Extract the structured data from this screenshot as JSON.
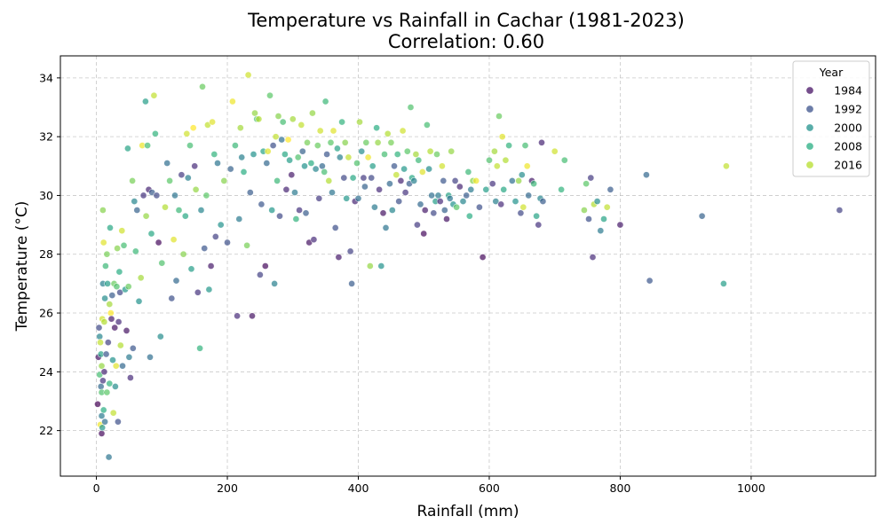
{
  "chart_data": {
    "type": "scatter",
    "title": "Temperature vs Rainfall in Cachar (1981-2023)",
    "subtitle": "Correlation: 0.60",
    "xlabel": "Rainfall (mm)",
    "ylabel": "Temperature (°C)",
    "xlim": [
      -55,
      1190
    ],
    "ylim": [
      20.45,
      34.75
    ],
    "xticks": [
      0,
      200,
      400,
      600,
      800,
      1000
    ],
    "yticks": [
      22,
      24,
      26,
      28,
      30,
      32,
      34
    ],
    "grid": true,
    "legend": {
      "title": "Year",
      "placement": "top-right",
      "entries": [
        {
          "label": "1984",
          "color": "#471365"
        },
        {
          "label": "1992",
          "color": "#3b528b"
        },
        {
          "label": "2000",
          "color": "#21918c"
        },
        {
          "label": "2008",
          "color": "#27ad81"
        },
        {
          "label": "2016",
          "color": "#b5de2b"
        }
      ]
    },
    "color_scale": {
      "year_range": [
        1981,
        2023
      ],
      "stops": [
        "#440154",
        "#472d7b",
        "#3b528b",
        "#2c728e",
        "#21918c",
        "#28ae80",
        "#5ec962",
        "#addc30",
        "#fde725"
      ]
    },
    "points": [
      [
        2,
        22.9,
        1981
      ],
      [
        3,
        24.5,
        1983
      ],
      [
        4,
        25.5,
        1990
      ],
      [
        5,
        23.9,
        2010
      ],
      [
        5,
        25.2,
        2000
      ],
      [
        6,
        25.0,
        2019
      ],
      [
        6,
        22.2,
        2022
      ],
      [
        7,
        23.5,
        1995
      ],
      [
        7,
        24.6,
        2005
      ],
      [
        8,
        21.9,
        1982
      ],
      [
        8,
        22.5,
        1998
      ],
      [
        8,
        23.3,
        2011
      ],
      [
        8,
        24.2,
        2016
      ],
      [
        9,
        22.1,
        2003
      ],
      [
        9,
        25.8,
        2020
      ],
      [
        10,
        23.7,
        1987
      ],
      [
        10,
        27.0,
        1999
      ],
      [
        10,
        29.5,
        2015
      ],
      [
        11,
        22.7,
        2007
      ],
      [
        11,
        28.4,
        2021
      ],
      [
        12,
        24.0,
        1985
      ],
      [
        12,
        25.7,
        2018
      ],
      [
        13,
        22.3,
        1996
      ],
      [
        13,
        26.5,
        2001
      ],
      [
        14,
        27.6,
        2009
      ],
      [
        15,
        24.6,
        1992
      ],
      [
        16,
        28.0,
        2014
      ],
      [
        16,
        23.3,
        2012
      ],
      [
        17,
        27.0,
        2004
      ],
      [
        18,
        25.0,
        1989
      ],
      [
        19,
        21.1,
        1997
      ],
      [
        20,
        26.3,
        2017
      ],
      [
        20,
        23.6,
        2008
      ],
      [
        21,
        28.9,
        2006
      ],
      [
        22,
        26.0,
        2023
      ],
      [
        23,
        25.8,
        1984
      ],
      [
        24,
        26.6,
        1993
      ],
      [
        25,
        24.4,
        2002
      ],
      [
        26,
        22.6,
        2019
      ],
      [
        27,
        27.0,
        2013
      ],
      [
        28,
        25.5,
        1983
      ],
      [
        29,
        23.5,
        2001
      ],
      [
        30,
        24.2,
        2021
      ],
      [
        31,
        26.9,
        2011
      ],
      [
        32,
        28.2,
        2015
      ],
      [
        33,
        22.3,
        1991
      ],
      [
        34,
        25.7,
        1986
      ],
      [
        35,
        27.4,
        2007
      ],
      [
        36,
        26.7,
        1990
      ],
      [
        37,
        24.9,
        2018
      ],
      [
        39,
        28.8,
        2020
      ],
      [
        40,
        24.2,
        1995
      ],
      [
        42,
        28.3,
        2010
      ],
      [
        44,
        26.8,
        2003
      ],
      [
        46,
        25.4,
        1983
      ],
      [
        48,
        31.6,
        2005
      ],
      [
        49,
        26.9,
        2013
      ],
      [
        50,
        24.5,
        1998
      ],
      [
        52,
        23.8,
        1986
      ],
      [
        55,
        30.5,
        2014
      ],
      [
        56,
        24.8,
        1992
      ],
      [
        58,
        29.8,
        2000
      ],
      [
        60,
        28.1,
        2009
      ],
      [
        62,
        29.5,
        1994
      ],
      [
        65,
        26.4,
        2002
      ],
      [
        68,
        27.2,
        2017
      ],
      [
        70,
        31.7,
        2022
      ],
      [
        72,
        30.0,
        1987
      ],
      [
        75,
        33.2,
        2004
      ],
      [
        76,
        29.3,
        2016
      ],
      [
        78,
        31.7,
        2010
      ],
      [
        80,
        30.2,
        1985
      ],
      [
        82,
        24.5,
        1996
      ],
      [
        84,
        28.7,
        2006
      ],
      [
        85,
        30.1,
        1993
      ],
      [
        88,
        33.4,
        2019
      ],
      [
        90,
        32.1,
        2008
      ],
      [
        92,
        30.0,
        1990
      ],
      [
        95,
        28.4,
        1982
      ],
      [
        98,
        25.2,
        2001
      ],
      [
        100,
        27.7,
        2011
      ],
      [
        105,
        29.6,
        2018
      ],
      [
        108,
        31.1,
        1996
      ],
      [
        112,
        30.5,
        2012
      ],
      [
        115,
        26.5,
        1991
      ],
      [
        118,
        28.5,
        2021
      ],
      [
        120,
        30.0,
        1997
      ],
      [
        122,
        27.1,
        1995
      ],
      [
        126,
        29.5,
        2009
      ],
      [
        130,
        30.7,
        1988
      ],
      [
        133,
        28.0,
        2015
      ],
      [
        136,
        29.3,
        2006
      ],
      [
        138,
        32.1,
        2020
      ],
      [
        140,
        30.6,
        1999
      ],
      [
        143,
        31.7,
        2010
      ],
      [
        145,
        27.5,
        2004
      ],
      [
        148,
        32.3,
        2023
      ],
      [
        150,
        31.0,
        1986
      ],
      [
        152,
        30.2,
        2016
      ],
      [
        155,
        26.7,
        1987
      ],
      [
        158,
        24.8,
        2008
      ],
      [
        160,
        29.5,
        2000
      ],
      [
        162,
        33.7,
        2013
      ],
      [
        165,
        28.2,
        1992
      ],
      [
        168,
        30.0,
        2012
      ],
      [
        170,
        32.4,
        2019
      ],
      [
        172,
        26.8,
        2003
      ],
      [
        175,
        27.6,
        1984
      ],
      [
        177,
        32.5,
        2021
      ],
      [
        180,
        31.4,
        2008
      ],
      [
        182,
        28.6,
        1989
      ],
      [
        185,
        31.1,
        1997
      ],
      [
        190,
        29.0,
        2002
      ],
      [
        195,
        30.5,
        2015
      ],
      [
        200,
        28.4,
        1991
      ],
      [
        205,
        30.9,
        1994
      ],
      [
        208,
        33.2,
        2022
      ],
      [
        212,
        31.7,
        2009
      ],
      [
        215,
        25.9,
        1986
      ],
      [
        218,
        29.2,
        1998
      ],
      [
        220,
        32.3,
        2017
      ],
      [
        222,
        31.3,
        1999
      ],
      [
        225,
        30.8,
        2007
      ],
      [
        230,
        28.3,
        2014
      ],
      [
        232,
        34.1,
        2020
      ],
      [
        235,
        30.1,
        1993
      ],
      [
        238,
        25.9,
        1983
      ],
      [
        240,
        31.4,
        2002
      ],
      [
        242,
        32.8,
        2016
      ],
      [
        245,
        32.6,
        2011
      ],
      [
        248,
        32.6,
        2018
      ],
      [
        250,
        27.3,
        1989
      ],
      [
        252,
        29.7,
        1992
      ],
      [
        255,
        31.5,
        2005
      ],
      [
        258,
        27.6,
        1982
      ],
      [
        260,
        31.1,
        1995
      ],
      [
        262,
        31.5,
        2021
      ],
      [
        265,
        33.4,
        2012
      ],
      [
        268,
        29.5,
        2003
      ],
      [
        270,
        31.7,
        1991
      ],
      [
        272,
        27.0,
        1999
      ],
      [
        274,
        32.0,
        2019
      ],
      [
        276,
        30.5,
        2009
      ],
      [
        278,
        32.7,
        2015
      ],
      [
        280,
        29.3,
        1990
      ],
      [
        283,
        31.9,
        1996
      ],
      [
        285,
        32.5,
        2010
      ],
      [
        288,
        31.4,
        2006
      ],
      [
        290,
        30.2,
        1985
      ],
      [
        293,
        31.9,
        2023
      ],
      [
        295,
        31.2,
        2004
      ],
      [
        298,
        30.7,
        1984
      ],
      [
        300,
        32.6,
        2017
      ],
      [
        303,
        30.1,
        1998
      ],
      [
        305,
        29.2,
        2008
      ],
      [
        308,
        31.3,
        2011
      ],
      [
        310,
        29.5,
        1987
      ],
      [
        313,
        32.4,
        2019
      ],
      [
        315,
        31.5,
        1994
      ],
      [
        318,
        31.0,
        2002
      ],
      [
        320,
        29.4,
        1993
      ],
      [
        322,
        31.8,
        2014
      ],
      [
        325,
        28.4,
        1983
      ],
      [
        328,
        31.1,
        2007
      ],
      [
        330,
        32.8,
        2016
      ],
      [
        332,
        28.5,
        1986
      ],
      [
        335,
        30.9,
        2000
      ],
      [
        338,
        31.7,
        2013
      ],
      [
        340,
        29.9,
        1988
      ],
      [
        342,
        32.2,
        2020
      ],
      [
        345,
        31.0,
        1995
      ],
      [
        348,
        30.8,
        2010
      ],
      [
        350,
        33.2,
        2009
      ],
      [
        352,
        31.4,
        1992
      ],
      [
        355,
        30.5,
        2018
      ],
      [
        358,
        31.8,
        2012
      ],
      [
        360,
        30.1,
        1997
      ],
      [
        362,
        32.2,
        2021
      ],
      [
        365,
        28.9,
        1991
      ],
      [
        368,
        31.6,
        2005
      ],
      [
        370,
        27.9,
        1984
      ],
      [
        372,
        31.3,
        1999
      ],
      [
        375,
        32.5,
        2008
      ],
      [
        378,
        30.6,
        1990
      ],
      [
        380,
        31.8,
        2015
      ],
      [
        382,
        29.9,
        2003
      ],
      [
        385,
        31.3,
        2019
      ],
      [
        388,
        28.1,
        1989
      ],
      [
        390,
        27.0,
        1993
      ],
      [
        392,
        30.6,
        2006
      ],
      [
        395,
        29.8,
        1985
      ],
      [
        398,
        31.1,
        2011
      ],
      [
        400,
        29.9,
        1996
      ],
      [
        402,
        32.5,
        2017
      ],
      [
        405,
        31.5,
        2001
      ],
      [
        408,
        30.6,
        1988
      ],
      [
        410,
        30.3,
        1994
      ],
      [
        412,
        31.8,
        2013
      ],
      [
        415,
        31.3,
        2022
      ],
      [
        418,
        27.6,
        2016
      ],
      [
        420,
        30.6,
        1990
      ],
      [
        422,
        31.0,
        2004
      ],
      [
        425,
        29.6,
        1998
      ],
      [
        428,
        32.3,
        2007
      ],
      [
        430,
        31.8,
        2016
      ],
      [
        432,
        30.2,
        1986
      ],
      [
        435,
        27.6,
        2002
      ],
      [
        438,
        29.4,
        1983
      ],
      [
        440,
        31.4,
        2010
      ],
      [
        442,
        28.9,
        1997
      ],
      [
        445,
        32.1,
        2018
      ],
      [
        448,
        30.4,
        1995
      ],
      [
        450,
        31.8,
        2014
      ],
      [
        452,
        29.5,
        2000
      ],
      [
        455,
        31.0,
        1992
      ],
      [
        458,
        30.7,
        2019
      ],
      [
        460,
        31.4,
        2008
      ],
      [
        462,
        29.8,
        1991
      ],
      [
        465,
        30.5,
        1985
      ],
      [
        468,
        32.2,
        2020
      ],
      [
        470,
        30.9,
        2003
      ],
      [
        472,
        30.1,
        1987
      ],
      [
        475,
        31.5,
        2012
      ],
      [
        478,
        30.4,
        1993
      ],
      [
        480,
        33.0,
        2011
      ],
      [
        482,
        30.6,
        2006
      ],
      [
        485,
        30.5,
        1999
      ],
      [
        488,
        31.4,
        2017
      ],
      [
        490,
        29.0,
        1988
      ],
      [
        492,
        31.2,
        2009
      ],
      [
        495,
        29.7,
        1995
      ],
      [
        498,
        30.8,
        2021
      ],
      [
        500,
        28.7,
        1982
      ],
      [
        502,
        29.5,
        1984
      ],
      [
        505,
        32.4,
        2010
      ],
      [
        508,
        30.9,
        2001
      ],
      [
        510,
        31.5,
        2018
      ],
      [
        512,
        30.0,
        1996
      ],
      [
        515,
        29.4,
        1990
      ],
      [
        518,
        29.8,
        2004
      ],
      [
        520,
        31.4,
        2013
      ],
      [
        522,
        30.0,
        1998
      ],
      [
        525,
        29.8,
        1986
      ],
      [
        528,
        31.0,
        2020
      ],
      [
        530,
        30.5,
        1992
      ],
      [
        532,
        29.5,
        1994
      ],
      [
        535,
        29.2,
        1983
      ],
      [
        538,
        30.0,
        2005
      ],
      [
        540,
        29.9,
        1997
      ],
      [
        542,
        31.5,
        2016
      ],
      [
        545,
        29.7,
        2002
      ],
      [
        548,
        30.5,
        1989
      ],
      [
        550,
        29.6,
        2012
      ],
      [
        555,
        30.3,
        1985
      ],
      [
        560,
        29.8,
        2000
      ],
      [
        565,
        30.0,
        1993
      ],
      [
        568,
        30.8,
        2009
      ],
      [
        570,
        29.3,
        2007
      ],
      [
        572,
        30.2,
        1998
      ],
      [
        575,
        30.5,
        2015
      ],
      [
        580,
        30.5,
        2022
      ],
      [
        585,
        29.6,
        1991
      ],
      [
        590,
        27.9,
        1982
      ],
      [
        595,
        30.2,
        2004
      ],
      [
        600,
        31.2,
        2011
      ],
      [
        605,
        30.4,
        1987
      ],
      [
        608,
        31.5,
        2017
      ],
      [
        610,
        29.8,
        1999
      ],
      [
        612,
        31.0,
        2019
      ],
      [
        615,
        32.7,
        2013
      ],
      [
        618,
        29.7,
        1986
      ],
      [
        620,
        32.0,
        2021
      ],
      [
        622,
        30.2,
        2006
      ],
      [
        625,
        31.2,
        2018
      ],
      [
        630,
        31.7,
        2008
      ],
      [
        635,
        30.5,
        1996
      ],
      [
        640,
        29.8,
        2002
      ],
      [
        645,
        30.5,
        2016
      ],
      [
        648,
        29.4,
        1990
      ],
      [
        650,
        30.7,
        2001
      ],
      [
        652,
        29.6,
        2020
      ],
      [
        655,
        31.7,
        2010
      ],
      [
        658,
        31.0,
        2022
      ],
      [
        660,
        30.0,
        1995
      ],
      [
        665,
        30.5,
        1984
      ],
      [
        668,
        30.4,
        2009
      ],
      [
        672,
        29.3,
        2005
      ],
      [
        675,
        29.0,
        1987
      ],
      [
        678,
        29.9,
        2000
      ],
      [
        680,
        31.8,
        1985
      ],
      [
        682,
        29.8,
        1993
      ],
      [
        700,
        31.5,
        2020
      ],
      [
        710,
        30.2,
        2008
      ],
      [
        715,
        31.2,
        2010
      ],
      [
        745,
        29.5,
        2015
      ],
      [
        748,
        30.4,
        2012
      ],
      [
        752,
        29.2,
        1991
      ],
      [
        755,
        30.6,
        1988
      ],
      [
        758,
        27.9,
        1986
      ],
      [
        760,
        29.7,
        2018
      ],
      [
        765,
        29.8,
        2001
      ],
      [
        770,
        28.8,
        1998
      ],
      [
        775,
        29.2,
        2005
      ],
      [
        780,
        29.6,
        2019
      ],
      [
        785,
        30.2,
        1993
      ],
      [
        800,
        29.0,
        1984
      ],
      [
        840,
        30.7,
        1995
      ],
      [
        845,
        27.1,
        1992
      ],
      [
        925,
        29.3,
        1994
      ],
      [
        958,
        27.0,
        2004
      ],
      [
        962,
        31.0,
        2019
      ],
      [
        1135,
        29.5,
        1989
      ]
    ]
  }
}
